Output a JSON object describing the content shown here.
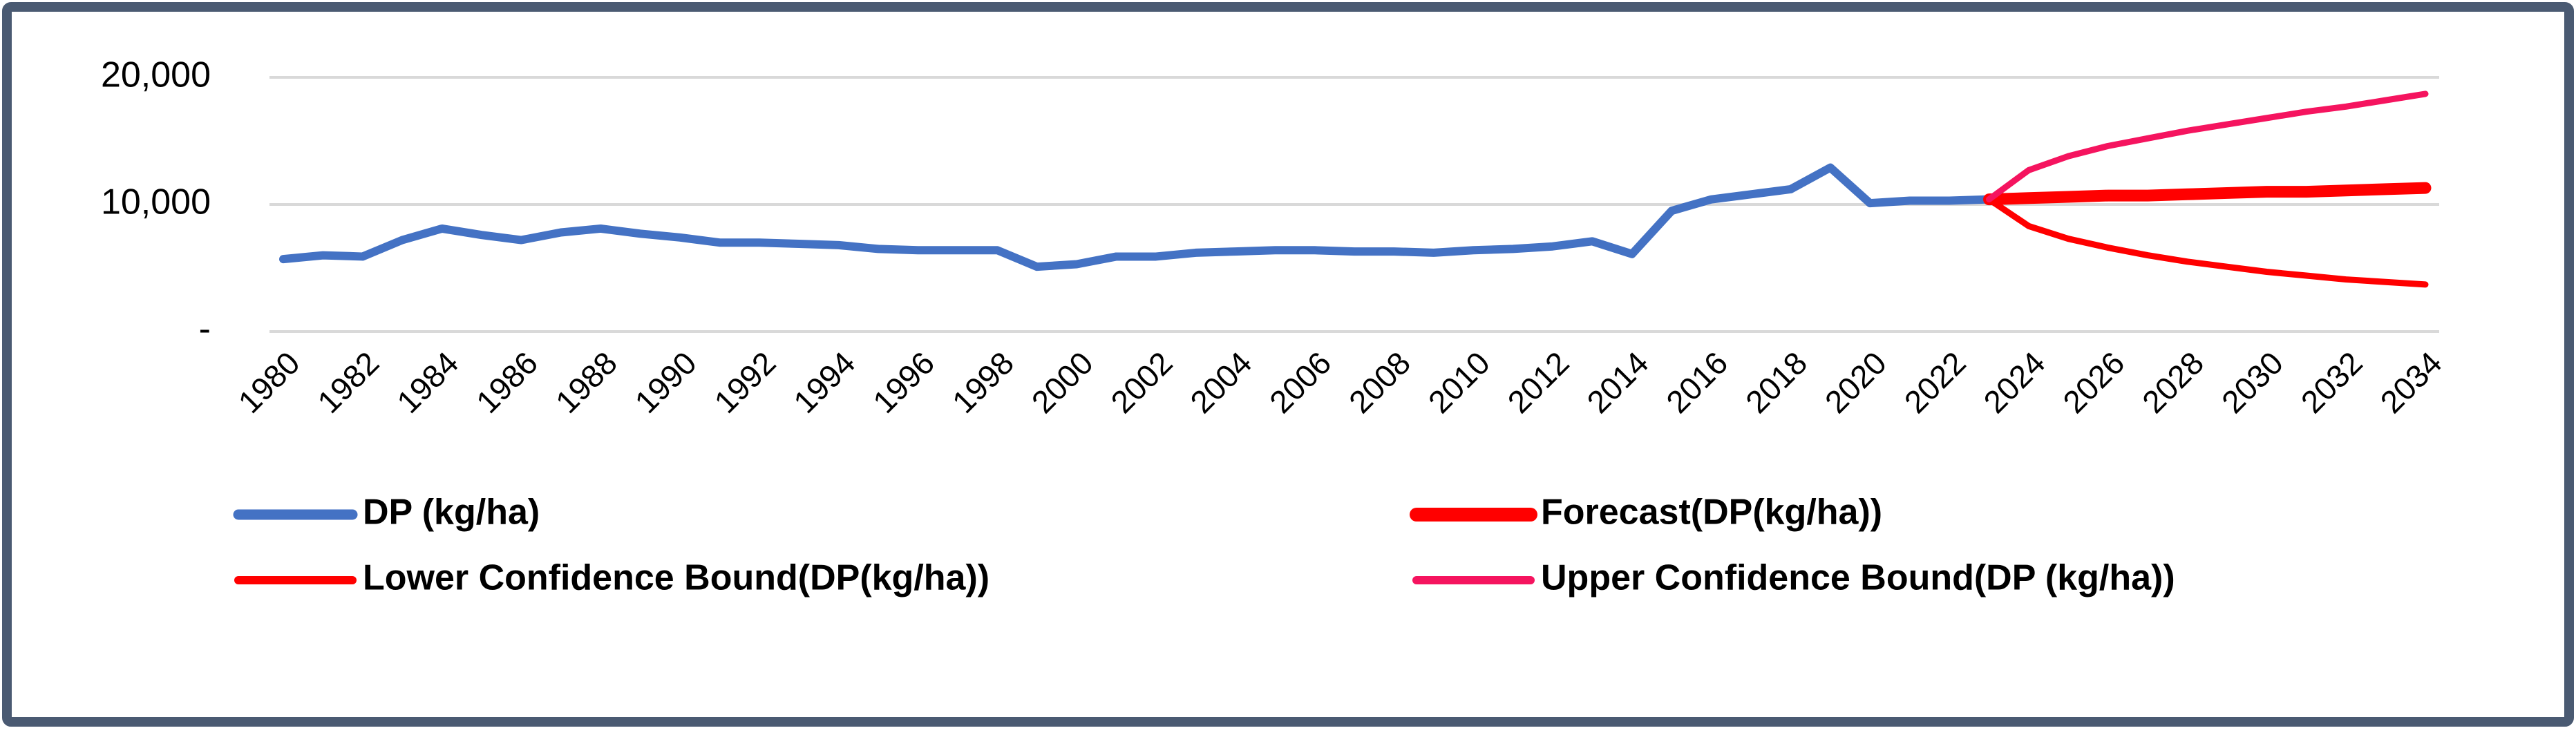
{
  "chart_data": {
    "type": "line",
    "x": [
      1980,
      1981,
      1982,
      1983,
      1984,
      1985,
      1986,
      1987,
      1988,
      1989,
      1990,
      1991,
      1992,
      1993,
      1994,
      1995,
      1996,
      1997,
      1998,
      1999,
      2000,
      2001,
      2002,
      2003,
      2004,
      2005,
      2006,
      2007,
      2008,
      2009,
      2010,
      2011,
      2012,
      2013,
      2014,
      2015,
      2016,
      2017,
      2018,
      2019,
      2020,
      2021,
      2022,
      2023,
      2024,
      2025,
      2026,
      2027,
      2028,
      2029,
      2030,
      2031,
      2032,
      2033,
      2034
    ],
    "xlim": [
      1980,
      2034
    ],
    "xticks": [
      1980,
      1982,
      1984,
      1986,
      1988,
      1990,
      1992,
      1994,
      1996,
      1998,
      2000,
      2002,
      2004,
      2006,
      2008,
      2010,
      2012,
      2014,
      2016,
      2018,
      2020,
      2022,
      2024,
      2026,
      2028,
      2030,
      2032,
      2034
    ],
    "ylim": [
      0,
      20000
    ],
    "yticks": [
      {
        "value": 0,
        "label": "-"
      },
      {
        "value": 10000,
        "label": "10,000"
      },
      {
        "value": 20000,
        "label": "20,000"
      }
    ],
    "grid": true,
    "legend": "bottom",
    "series": [
      {
        "name": "DP (kg/ha)",
        "color": "#4472c4",
        "width": 12,
        "values": [
          5700,
          6000,
          5900,
          7200,
          8100,
          7600,
          7200,
          7800,
          8100,
          7700,
          7400,
          7000,
          7000,
          6900,
          6800,
          6500,
          6400,
          6400,
          6400,
          5100,
          5300,
          5900,
          5900,
          6200,
          6300,
          6400,
          6400,
          6300,
          6300,
          6200,
          6400,
          6500,
          6700,
          7100,
          6100,
          9500,
          10400,
          10800,
          11200,
          12900,
          10100,
          10300,
          10300,
          10400,
          null,
          null,
          null,
          null,
          null,
          null,
          null,
          null,
          null,
          null,
          null
        ]
      },
      {
        "name": "Forecast(DP(kg/ha))",
        "color": "#ff0000",
        "width": 17,
        "values": [
          null,
          null,
          null,
          null,
          null,
          null,
          null,
          null,
          null,
          null,
          null,
          null,
          null,
          null,
          null,
          null,
          null,
          null,
          null,
          null,
          null,
          null,
          null,
          null,
          null,
          null,
          null,
          null,
          null,
          null,
          null,
          null,
          null,
          null,
          null,
          null,
          null,
          null,
          null,
          null,
          null,
          null,
          null,
          10400,
          10500,
          10600,
          10700,
          10700,
          10800,
          10900,
          11000,
          11000,
          11100,
          11200,
          11300
        ]
      },
      {
        "name": "Lower Confidence Bound(DP(kg/ha))",
        "color": "#ff0000",
        "width": 9,
        "values": [
          null,
          null,
          null,
          null,
          null,
          null,
          null,
          null,
          null,
          null,
          null,
          null,
          null,
          null,
          null,
          null,
          null,
          null,
          null,
          null,
          null,
          null,
          null,
          null,
          null,
          null,
          null,
          null,
          null,
          null,
          null,
          null,
          null,
          null,
          null,
          null,
          null,
          null,
          null,
          null,
          null,
          null,
          null,
          10400,
          8300,
          7300,
          6600,
          6000,
          5500,
          5100,
          4700,
          4400,
          4100,
          3900,
          3700
        ]
      },
      {
        "name": "Upper Confidence Bound(DP (kg/ha))",
        "color": "#f5145f",
        "width": 9,
        "values": [
          null,
          null,
          null,
          null,
          null,
          null,
          null,
          null,
          null,
          null,
          null,
          null,
          null,
          null,
          null,
          null,
          null,
          null,
          null,
          null,
          null,
          null,
          null,
          null,
          null,
          null,
          null,
          null,
          null,
          null,
          null,
          null,
          null,
          null,
          null,
          null,
          null,
          null,
          null,
          null,
          null,
          null,
          null,
          10400,
          12700,
          13800,
          14600,
          15200,
          15800,
          16300,
          16800,
          17300,
          17700,
          18200,
          18700
        ]
      }
    ]
  }
}
